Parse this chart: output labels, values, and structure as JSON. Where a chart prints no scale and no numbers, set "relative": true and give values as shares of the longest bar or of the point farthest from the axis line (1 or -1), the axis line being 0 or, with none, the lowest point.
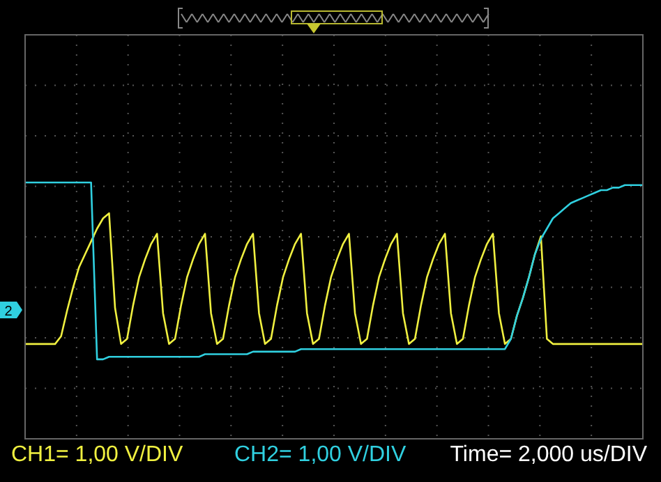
{
  "chart_data": {
    "type": "line",
    "relative": true,
    "xlabel": "Time= 2,000 us/DIV",
    "annotations": [
      "2"
    ],
    "grid": true,
    "legend": "bottom",
    "marker": "none",
    "line_style": "solid",
    "categories": [
      null,
      null,
      null,
      null,
      null,
      null,
      null,
      null,
      null,
      null,
      null,
      null,
      null,
      null,
      null,
      null,
      null,
      null,
      null,
      null,
      null,
      null,
      null,
      null,
      null,
      null,
      null,
      null,
      null,
      null,
      null,
      null,
      null,
      null,
      null,
      null,
      null,
      null,
      null,
      null,
      null,
      null,
      null,
      null,
      null,
      null,
      null,
      null,
      null,
      null,
      null,
      null,
      null,
      null,
      null,
      null,
      null,
      null,
      null,
      null,
      null,
      null,
      null,
      null,
      null,
      null,
      null,
      null,
      null,
      null,
      null,
      null,
      null,
      null,
      null,
      null,
      null,
      null,
      null,
      null,
      null,
      null,
      null,
      null,
      null,
      null,
      null,
      null,
      null,
      null,
      null,
      null,
      null,
      null,
      null,
      null,
      null,
      null,
      null,
      null,
      null,
      null,
      null,
      null
    ],
    "series": [
      {
        "name": "CH1= 1,00 V/DIV",
        "color": "#f0f040",
        "values": [
          0.37,
          0.37,
          0.37,
          0.37,
          0.37,
          0.37,
          0.4,
          0.5,
          0.59,
          0.67,
          0.72,
          0.77,
          0.82,
          0.86,
          0.88,
          0.51,
          0.37,
          0.39,
          0.52,
          0.63,
          0.7,
          0.76,
          0.8,
          0.49,
          0.37,
          0.39,
          0.52,
          0.63,
          0.7,
          0.76,
          0.8,
          0.49,
          0.37,
          0.39,
          0.52,
          0.63,
          0.7,
          0.76,
          0.8,
          0.49,
          0.37,
          0.39,
          0.52,
          0.63,
          0.7,
          0.76,
          0.8,
          0.49,
          0.37,
          0.39,
          0.52,
          0.63,
          0.7,
          0.76,
          0.8,
          0.49,
          0.37,
          0.39,
          0.52,
          0.63,
          0.7,
          0.76,
          0.8,
          0.49,
          0.37,
          0.39,
          0.52,
          0.63,
          0.7,
          0.76,
          0.8,
          0.49,
          0.37,
          0.39,
          0.52,
          0.63,
          0.7,
          0.76,
          0.8,
          0.49,
          0.37,
          0.39,
          0.48,
          0.55,
          0.63,
          0.72,
          0.79,
          0.39,
          0.37,
          0.37,
          0.37,
          0.37,
          0.37,
          0.37,
          0.37,
          0.37,
          0.37,
          0.37,
          0.37,
          0.37,
          0.37,
          0.37,
          0.37,
          0.37
        ]
      },
      {
        "name": "CH2= 1,00 V/DIV",
        "color": "#30d0e0",
        "values": [
          1.0,
          1.0,
          1.0,
          1.0,
          1.0,
          1.0,
          1.0,
          1.0,
          1.0,
          1.0,
          1.0,
          1.0,
          0.31,
          0.31,
          0.32,
          0.32,
          0.32,
          0.32,
          0.32,
          0.32,
          0.32,
          0.32,
          0.32,
          0.32,
          0.32,
          0.32,
          0.32,
          0.32,
          0.32,
          0.32,
          0.33,
          0.33,
          0.33,
          0.33,
          0.33,
          0.33,
          0.33,
          0.33,
          0.34,
          0.34,
          0.34,
          0.34,
          0.34,
          0.34,
          0.34,
          0.34,
          0.35,
          0.35,
          0.35,
          0.35,
          0.35,
          0.35,
          0.35,
          0.35,
          0.35,
          0.35,
          0.35,
          0.35,
          0.35,
          0.35,
          0.35,
          0.35,
          0.35,
          0.35,
          0.35,
          0.35,
          0.35,
          0.35,
          0.35,
          0.35,
          0.35,
          0.35,
          0.35,
          0.35,
          0.35,
          0.35,
          0.35,
          0.35,
          0.35,
          0.35,
          0.35,
          0.39,
          0.48,
          0.55,
          0.63,
          0.72,
          0.78,
          0.82,
          0.86,
          0.88,
          0.9,
          0.92,
          0.93,
          0.94,
          0.95,
          0.96,
          0.97,
          0.97,
          0.98,
          0.98,
          0.99,
          0.99,
          0.99,
          0.99
        ]
      }
    ]
  }
}
